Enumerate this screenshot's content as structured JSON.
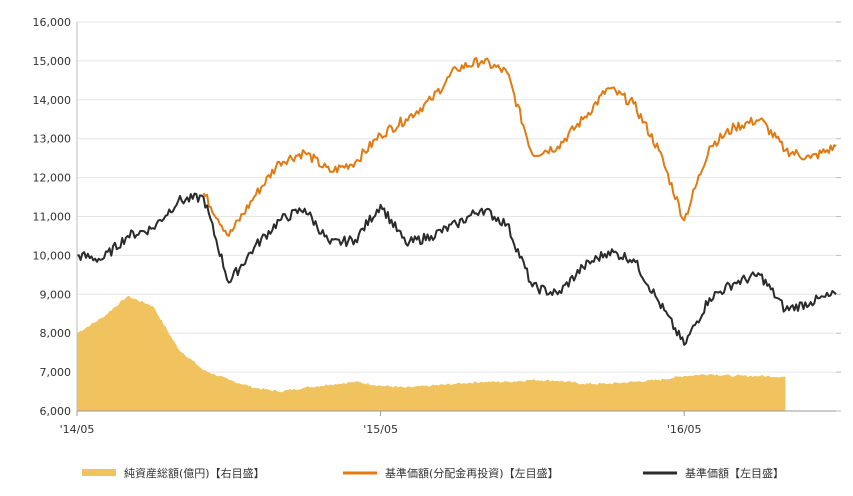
{
  "chart_data": {
    "type": "line",
    "x_tick_labels": [
      "'14/05",
      "'15/05",
      "'16/05"
    ],
    "y_left": {
      "ylim": [
        6000,
        16000
      ],
      "ticks": [
        "6,000",
        "7,000",
        "8,000",
        "9,000",
        "10,000",
        "11,000",
        "12,000",
        "13,000",
        "14,000",
        "15,000",
        "16,000"
      ]
    },
    "y_right": {
      "ticks_visible": false
    },
    "grid": true,
    "legend_position": "bottom",
    "series": [
      {
        "name": "純資産総額(億円)【右目盛】",
        "axis": "right",
        "render": "area",
        "color": "#F0C35F",
        "points": [
          [
            "2014-05",
            8000
          ],
          [
            "2014-06",
            8400
          ],
          [
            "2014-07",
            8950
          ],
          [
            "2014-08",
            8700
          ],
          [
            "2014-09",
            7600
          ],
          [
            "2014-10",
            7050
          ],
          [
            "2014-11",
            6800
          ],
          [
            "2014-12",
            6600
          ],
          [
            "2015-01",
            6500
          ],
          [
            "2015-02",
            6600
          ],
          [
            "2015-03",
            6680
          ],
          [
            "2015-04",
            6750
          ],
          [
            "2015-05",
            6650
          ],
          [
            "2015-06",
            6600
          ],
          [
            "2015-07",
            6650
          ],
          [
            "2015-08",
            6700
          ],
          [
            "2015-09",
            6750
          ],
          [
            "2015-10",
            6750
          ],
          [
            "2015-11",
            6800
          ],
          [
            "2015-12",
            6780
          ],
          [
            "2016-01",
            6700
          ],
          [
            "2016-02",
            6700
          ],
          [
            "2016-03",
            6750
          ],
          [
            "2016-04",
            6800
          ],
          [
            "2016-05",
            6900
          ],
          [
            "2016-06",
            6950
          ],
          [
            "2016-07",
            6900
          ],
          [
            "2016-08",
            6900
          ],
          [
            "2016-09",
            6880
          ]
        ]
      },
      {
        "name": "基準価額(分配金再投資)【左目盛】",
        "axis": "left",
        "render": "line",
        "color": "#E07B12",
        "points": [
          [
            "2014-10",
            11600
          ],
          [
            "2014-11",
            10500
          ],
          [
            "2014-12",
            11500
          ],
          [
            "2015-01",
            12400
          ],
          [
            "2015-02",
            12650
          ],
          [
            "2015-03",
            12150
          ],
          [
            "2015-04",
            12400
          ],
          [
            "2015-05",
            13100
          ],
          [
            "2015-06",
            13500
          ],
          [
            "2015-07",
            14000
          ],
          [
            "2015-08",
            14800
          ],
          [
            "2015-09",
            15000
          ],
          [
            "2015-10",
            14700
          ],
          [
            "2015-11",
            12600
          ],
          [
            "2015-12",
            12800
          ],
          [
            "2016-01",
            13500
          ],
          [
            "2016-02",
            14300
          ],
          [
            "2016-03",
            13900
          ],
          [
            "2016-04",
            12700
          ],
          [
            "2016-05",
            10900
          ],
          [
            "2016-06",
            12800
          ],
          [
            "2016-07",
            13300
          ],
          [
            "2016-08",
            13500
          ],
          [
            "2016-09",
            12700
          ],
          [
            "2016-10",
            12500
          ],
          [
            "2016-11",
            12800
          ]
        ]
      },
      {
        "name": "基準価額【左目盛】",
        "axis": "left",
        "render": "line",
        "color": "#2B2B2B",
        "points": [
          [
            "2014-05",
            10000
          ],
          [
            "2014-06",
            9900
          ],
          [
            "2014-07",
            10500
          ],
          [
            "2014-08",
            10700
          ],
          [
            "2014-09",
            11400
          ],
          [
            "2014-10",
            11500
          ],
          [
            "2014-11",
            9300
          ],
          [
            "2014-12",
            10200
          ],
          [
            "2015-01",
            10900
          ],
          [
            "2015-02",
            11200
          ],
          [
            "2015-03",
            10300
          ],
          [
            "2015-04",
            10400
          ],
          [
            "2015-05",
            11300
          ],
          [
            "2015-06",
            10300
          ],
          [
            "2015-07",
            10500
          ],
          [
            "2015-08",
            10800
          ],
          [
            "2015-09",
            11200
          ],
          [
            "2015-10",
            10800
          ],
          [
            "2015-11",
            9200
          ],
          [
            "2015-12",
            9000
          ],
          [
            "2016-01",
            9700
          ],
          [
            "2016-02",
            10100
          ],
          [
            "2016-03",
            9900
          ],
          [
            "2016-04",
            8800
          ],
          [
            "2016-05",
            7700
          ],
          [
            "2016-06",
            8900
          ],
          [
            "2016-07",
            9300
          ],
          [
            "2016-08",
            9500
          ],
          [
            "2016-09",
            8600
          ],
          [
            "2016-10",
            8800
          ],
          [
            "2016-11",
            9000
          ]
        ]
      }
    ]
  }
}
